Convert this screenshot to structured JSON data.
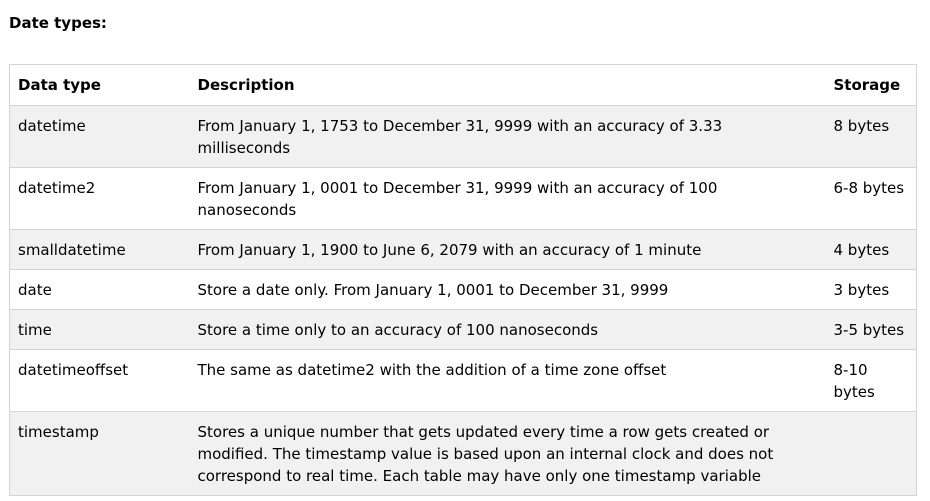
{
  "heading": "Date types:",
  "table": {
    "headers": {
      "type": "Data type",
      "description": "Description",
      "storage": "Storage"
    },
    "rows": [
      {
        "type": "datetime",
        "description": "From January 1, 1753 to December 31, 9999 with an accuracy of 3.33 milliseconds",
        "storage": "8 bytes"
      },
      {
        "type": "datetime2",
        "description": "From January 1, 0001 to December 31, 9999 with an accuracy of 100 nanoseconds",
        "storage": "6-8 bytes"
      },
      {
        "type": "smalldatetime",
        "description": "From January 1, 1900 to June 6, 2079 with an accuracy of 1 minute",
        "storage": "4 bytes"
      },
      {
        "type": "date",
        "description": "Store a date only. From January 1, 0001 to December 31, 9999",
        "storage": "3 bytes"
      },
      {
        "type": "time",
        "description": "Store a time only to an accuracy of 100 nanoseconds",
        "storage": "3-5 bytes"
      },
      {
        "type": "datetimeoffset",
        "description": "The same as datetime2 with the addition of a time zone offset",
        "storage": "8-10 bytes"
      },
      {
        "type": "timestamp",
        "description": "Stores a unique number that gets updated every time a row gets created or modified. The timestamp value is based upon an internal clock and does not correspond to real time. Each table may have only one timestamp variable",
        "storage": ""
      }
    ]
  }
}
